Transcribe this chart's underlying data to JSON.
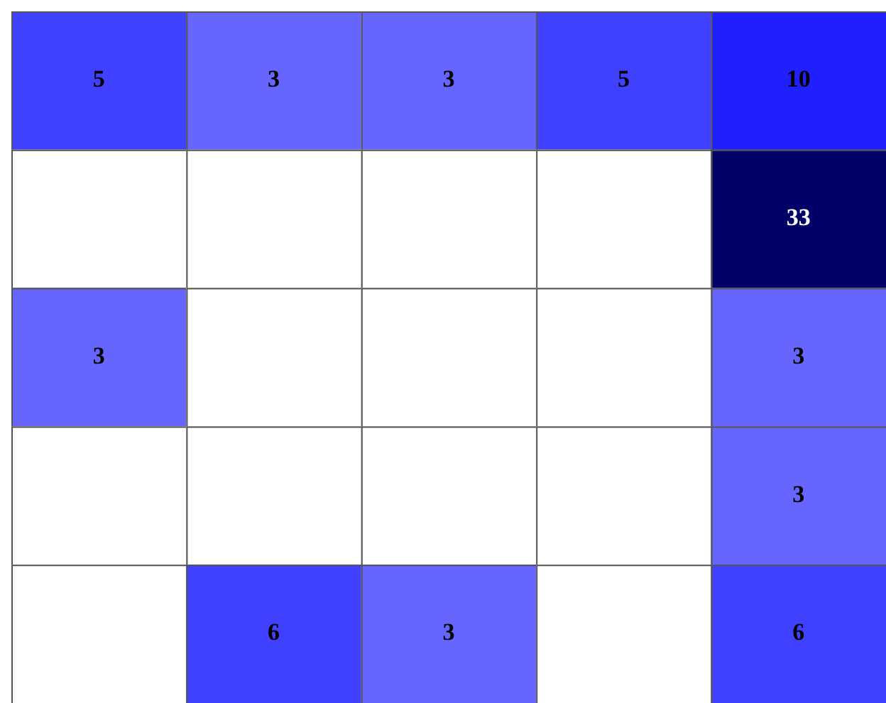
{
  "chart_data": {
    "type": "heatmap",
    "categories": [
      null,
      null,
      null,
      null,
      null
    ],
    "y_categories": [
      null,
      null,
      null,
      null,
      null
    ],
    "cells": [
      [
        5,
        3,
        3,
        5,
        10
      ],
      [
        null,
        null,
        null,
        null,
        33
      ],
      [
        3,
        null,
        null,
        null,
        3
      ],
      [
        null,
        null,
        null,
        null,
        3
      ],
      [
        null,
        6,
        3,
        null,
        6
      ]
    ],
    "colors": [
      [
        "#4040ff",
        "#6666ff",
        "#6666ff",
        "#4040ff",
        "#2020ff"
      ],
      [
        null,
        null,
        null,
        null,
        "#000066"
      ],
      [
        "#6666ff",
        null,
        null,
        null,
        "#6666ff"
      ],
      [
        null,
        null,
        null,
        null,
        "#6666ff"
      ],
      [
        null,
        "#4040ff",
        "#6666ff",
        null,
        "#4040ff"
      ]
    ],
    "data_labels": true
  }
}
